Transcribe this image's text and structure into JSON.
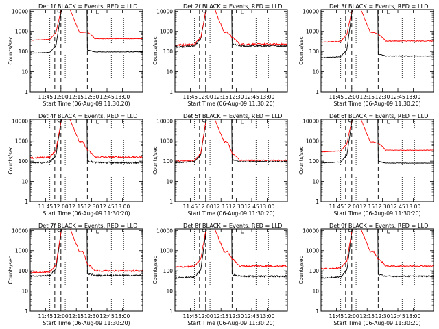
{
  "chart_data": {
    "type": "line",
    "layout": "3x3 grid",
    "y_scale": "log",
    "ylim": [
      1,
      12000
    ],
    "y_ticks": [
      1,
      10,
      100,
      1000,
      10000
    ],
    "y_tick_labels": [
      "1",
      "10",
      "100",
      "1000",
      "10000"
    ],
    "ylabel": "Counts/sec",
    "xlim_hours": [
      11.5,
      13.33
    ],
    "x_ticks_hours": [
      11.75,
      12.0,
      12.25,
      12.5,
      12.75,
      13.0
    ],
    "x_tick_labels": [
      "11:45",
      "12:00",
      "12:15",
      "12:30",
      "12:45",
      "13:00"
    ],
    "xlabel": "Start Time (06-Aug-09 11:30:20)",
    "series_colors": {
      "events": "#000000",
      "lld": "#ff0000"
    },
    "dotted_lines_hours": [
      11.82,
      12.07,
      12.82,
      13.02
    ],
    "dashed_lines_hours": [
      11.9,
      12.0,
      12.43
    ],
    "panels": [
      {
        "title": "Det 1f BLACK = Events, RED = LLD",
        "base_events": 90,
        "base_lld": 400,
        "post_events": 95,
        "post_lld": 430,
        "noise": 0.03
      },
      {
        "title": "Det 2f BLACK = Events, RED = LLD",
        "base_events": 190,
        "base_lld": 230,
        "post_events": 190,
        "post_lld": 230,
        "noise": 0.1
      },
      {
        "title": "Det 3f BLACK = Events, RED = LLD",
        "base_events": 55,
        "base_lld": 320,
        "post_events": 60,
        "post_lld": 330,
        "noise": 0.04
      },
      {
        "title": "Det 4f BLACK = Events, RED = LLD",
        "base_events": 90,
        "base_lld": 160,
        "post_events": 85,
        "post_lld": 160,
        "noise": 0.09
      },
      {
        "title": "Det 5f BLACK = Events, RED = LLD",
        "base_events": 95,
        "base_lld": 110,
        "post_events": 95,
        "post_lld": 110,
        "noise": 0.06
      },
      {
        "title": "Det 6f BLACK = Events, RED = LLD",
        "base_events": 90,
        "base_lld": 320,
        "post_events": 80,
        "post_lld": 350,
        "noise": 0.03
      },
      {
        "title": "Det 7f BLACK = Events, RED = LLD",
        "base_events": 60,
        "base_lld": 90,
        "post_events": 60,
        "post_lld": 100,
        "noise": 0.08
      },
      {
        "title": "Det 8f BLACK = Events, RED = LLD",
        "base_events": 50,
        "base_lld": 170,
        "post_events": 55,
        "post_lld": 175,
        "noise": 0.09
      },
      {
        "title": "Det 9f BLACK = Events, RED = LLD",
        "base_events": 50,
        "base_lld": 140,
        "post_events": 55,
        "post_lld": 175,
        "noise": 0.07
      }
    ]
  }
}
